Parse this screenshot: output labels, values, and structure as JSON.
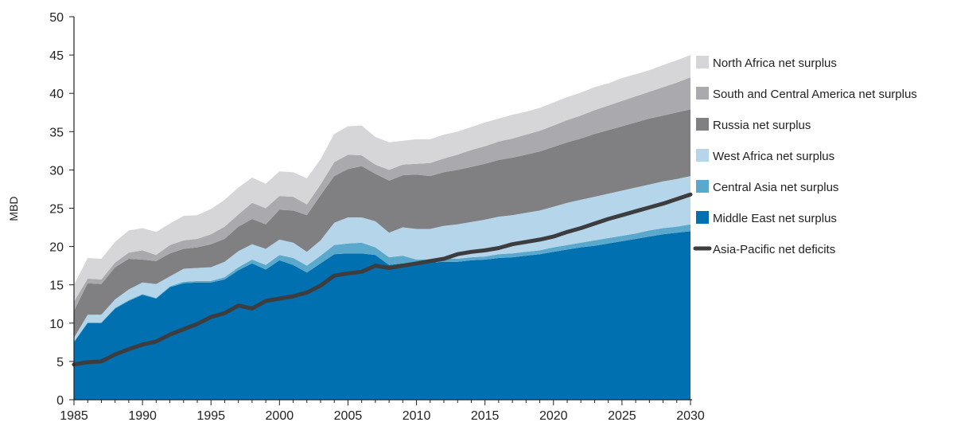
{
  "chart_data": {
    "type": "area",
    "stacked": true,
    "ylabel": "MBD",
    "xlabel": "",
    "xlim": [
      1985,
      2030
    ],
    "ylim": [
      0,
      50
    ],
    "x_ticks": [
      1985,
      1990,
      1995,
      2000,
      2005,
      2010,
      2015,
      2020,
      2025,
      2030
    ],
    "y_ticks": [
      0,
      5,
      10,
      15,
      20,
      25,
      30,
      35,
      40,
      45,
      50
    ],
    "grid": false,
    "legend_position": "right",
    "x": [
      1985,
      1986,
      1987,
      1988,
      1989,
      1990,
      1991,
      1992,
      1993,
      1994,
      1995,
      1996,
      1997,
      1998,
      1999,
      2000,
      2001,
      2002,
      2003,
      2004,
      2005,
      2006,
      2007,
      2008,
      2009,
      2010,
      2011,
      2012,
      2013,
      2014,
      2015,
      2016,
      2017,
      2018,
      2019,
      2020,
      2021,
      2022,
      2023,
      2024,
      2025,
      2026,
      2027,
      2028,
      2029,
      2030
    ],
    "series": [
      {
        "name": "Middle East net surplus",
        "color": "#0070b0",
        "values": [
          7.5,
          10.0,
          10.0,
          11.9,
          12.9,
          13.7,
          13.2,
          14.7,
          15.2,
          15.3,
          15.3,
          15.7,
          16.9,
          17.8,
          17.0,
          18.2,
          17.6,
          16.6,
          17.8,
          19.0,
          19.1,
          19.1,
          18.9,
          17.6,
          17.8,
          17.8,
          17.9,
          18.0,
          18.0,
          18.2,
          18.3,
          18.5,
          18.6,
          18.8,
          19.0,
          19.3,
          19.6,
          19.9,
          20.1,
          20.4,
          20.7,
          21.0,
          21.3,
          21.6,
          21.8,
          22.0
        ]
      },
      {
        "name": "Central Asia net surplus",
        "color": "#5aa8cc",
        "values": [
          0.1,
          0.1,
          0.1,
          0.1,
          0.1,
          0.1,
          0.1,
          0.1,
          0.2,
          0.2,
          0.2,
          0.3,
          0.4,
          0.5,
          0.6,
          0.7,
          0.9,
          0.9,
          1.0,
          1.2,
          1.3,
          1.4,
          1.0,
          1.0,
          1.0,
          0.5,
          0.4,
          0.4,
          0.4,
          0.4,
          0.4,
          0.5,
          0.5,
          0.5,
          0.5,
          0.6,
          0.6,
          0.6,
          0.7,
          0.7,
          0.7,
          0.7,
          0.8,
          0.8,
          0.8,
          0.9
        ]
      },
      {
        "name": "West Africa net surplus",
        "color": "#b4d5ea",
        "values": [
          0.5,
          1.0,
          1.0,
          1.1,
          1.4,
          1.5,
          1.8,
          1.3,
          1.7,
          1.7,
          1.8,
          2.0,
          2.1,
          2.0,
          2.1,
          2.0,
          2.0,
          1.8,
          2.0,
          2.9,
          3.4,
          3.3,
          3.4,
          3.2,
          3.7,
          4.0,
          4.0,
          4.3,
          4.5,
          4.6,
          4.8,
          4.9,
          5.0,
          5.1,
          5.2,
          5.3,
          5.5,
          5.6,
          5.7,
          5.8,
          5.9,
          6.0,
          6.0,
          6.1,
          6.2,
          6.3
        ]
      },
      {
        "name": "Russia net surplus",
        "color": "#808083",
        "values": [
          3.5,
          4.1,
          4.0,
          4.2,
          4.0,
          3.0,
          3.0,
          3.0,
          2.6,
          2.7,
          3.0,
          3.0,
          3.2,
          3.3,
          3.2,
          3.9,
          4.2,
          4.8,
          5.9,
          6.1,
          6.3,
          6.7,
          6.2,
          6.8,
          6.8,
          7.1,
          6.9,
          7.0,
          7.1,
          7.2,
          7.3,
          7.4,
          7.5,
          7.6,
          7.7,
          7.8,
          7.9,
          8.0,
          8.2,
          8.3,
          8.4,
          8.5,
          8.6,
          8.6,
          8.7,
          8.7
        ]
      },
      {
        "name": "South and Central America net surplus",
        "color": "#aaaaae",
        "values": [
          1.2,
          0.6,
          0.6,
          0.6,
          0.8,
          1.2,
          0.8,
          1.1,
          1.1,
          1.1,
          1.3,
          1.6,
          1.6,
          2.1,
          2.1,
          1.8,
          1.8,
          1.4,
          1.4,
          1.8,
          1.9,
          1.4,
          1.2,
          1.4,
          1.4,
          1.4,
          1.7,
          1.8,
          2.0,
          2.2,
          2.3,
          2.4,
          2.5,
          2.6,
          2.7,
          2.8,
          2.9,
          3.0,
          3.1,
          3.2,
          3.3,
          3.4,
          3.5,
          3.7,
          3.9,
          4.2
        ]
      },
      {
        "name": "North Africa net surplus",
        "color": "#d6d6d8",
        "values": [
          2.2,
          2.7,
          2.7,
          2.7,
          2.9,
          2.9,
          3.0,
          2.8,
          3.2,
          3.1,
          3.3,
          3.5,
          3.5,
          3.3,
          3.2,
          3.2,
          3.2,
          3.4,
          3.3,
          3.7,
          3.7,
          3.9,
          3.6,
          3.6,
          3.1,
          3.2,
          3.1,
          3.1,
          3.0,
          3.0,
          3.1,
          3.0,
          3.1,
          3.0,
          3.0,
          3.0,
          3.0,
          3.0,
          3.0,
          2.9,
          3.0,
          2.9,
          2.8,
          2.9,
          2.9,
          2.9
        ]
      }
    ],
    "line_series": {
      "name": "Asia-Pacific net deficits",
      "color": "#3d3d3f",
      "values": [
        4.6,
        4.9,
        5.0,
        5.9,
        6.6,
        7.2,
        7.6,
        8.5,
        9.2,
        9.9,
        10.8,
        11.3,
        12.3,
        11.9,
        12.9,
        13.2,
        13.5,
        14.0,
        14.9,
        16.2,
        16.5,
        16.7,
        17.5,
        17.2,
        17.5,
        17.8,
        18.1,
        18.4,
        19.0,
        19.3,
        19.5,
        19.8,
        20.3,
        20.6,
        20.9,
        21.3,
        21.9,
        22.4,
        23.0,
        23.6,
        24.1,
        24.6,
        25.1,
        25.6,
        26.2,
        26.8
      ]
    },
    "legend_order": [
      "North Africa net surplus",
      "South and Central America net surplus",
      "Russia net surplus",
      "West Africa net surplus",
      "Central Asia net surplus",
      "Middle East net surplus",
      "Asia-Pacific net deficits"
    ]
  }
}
